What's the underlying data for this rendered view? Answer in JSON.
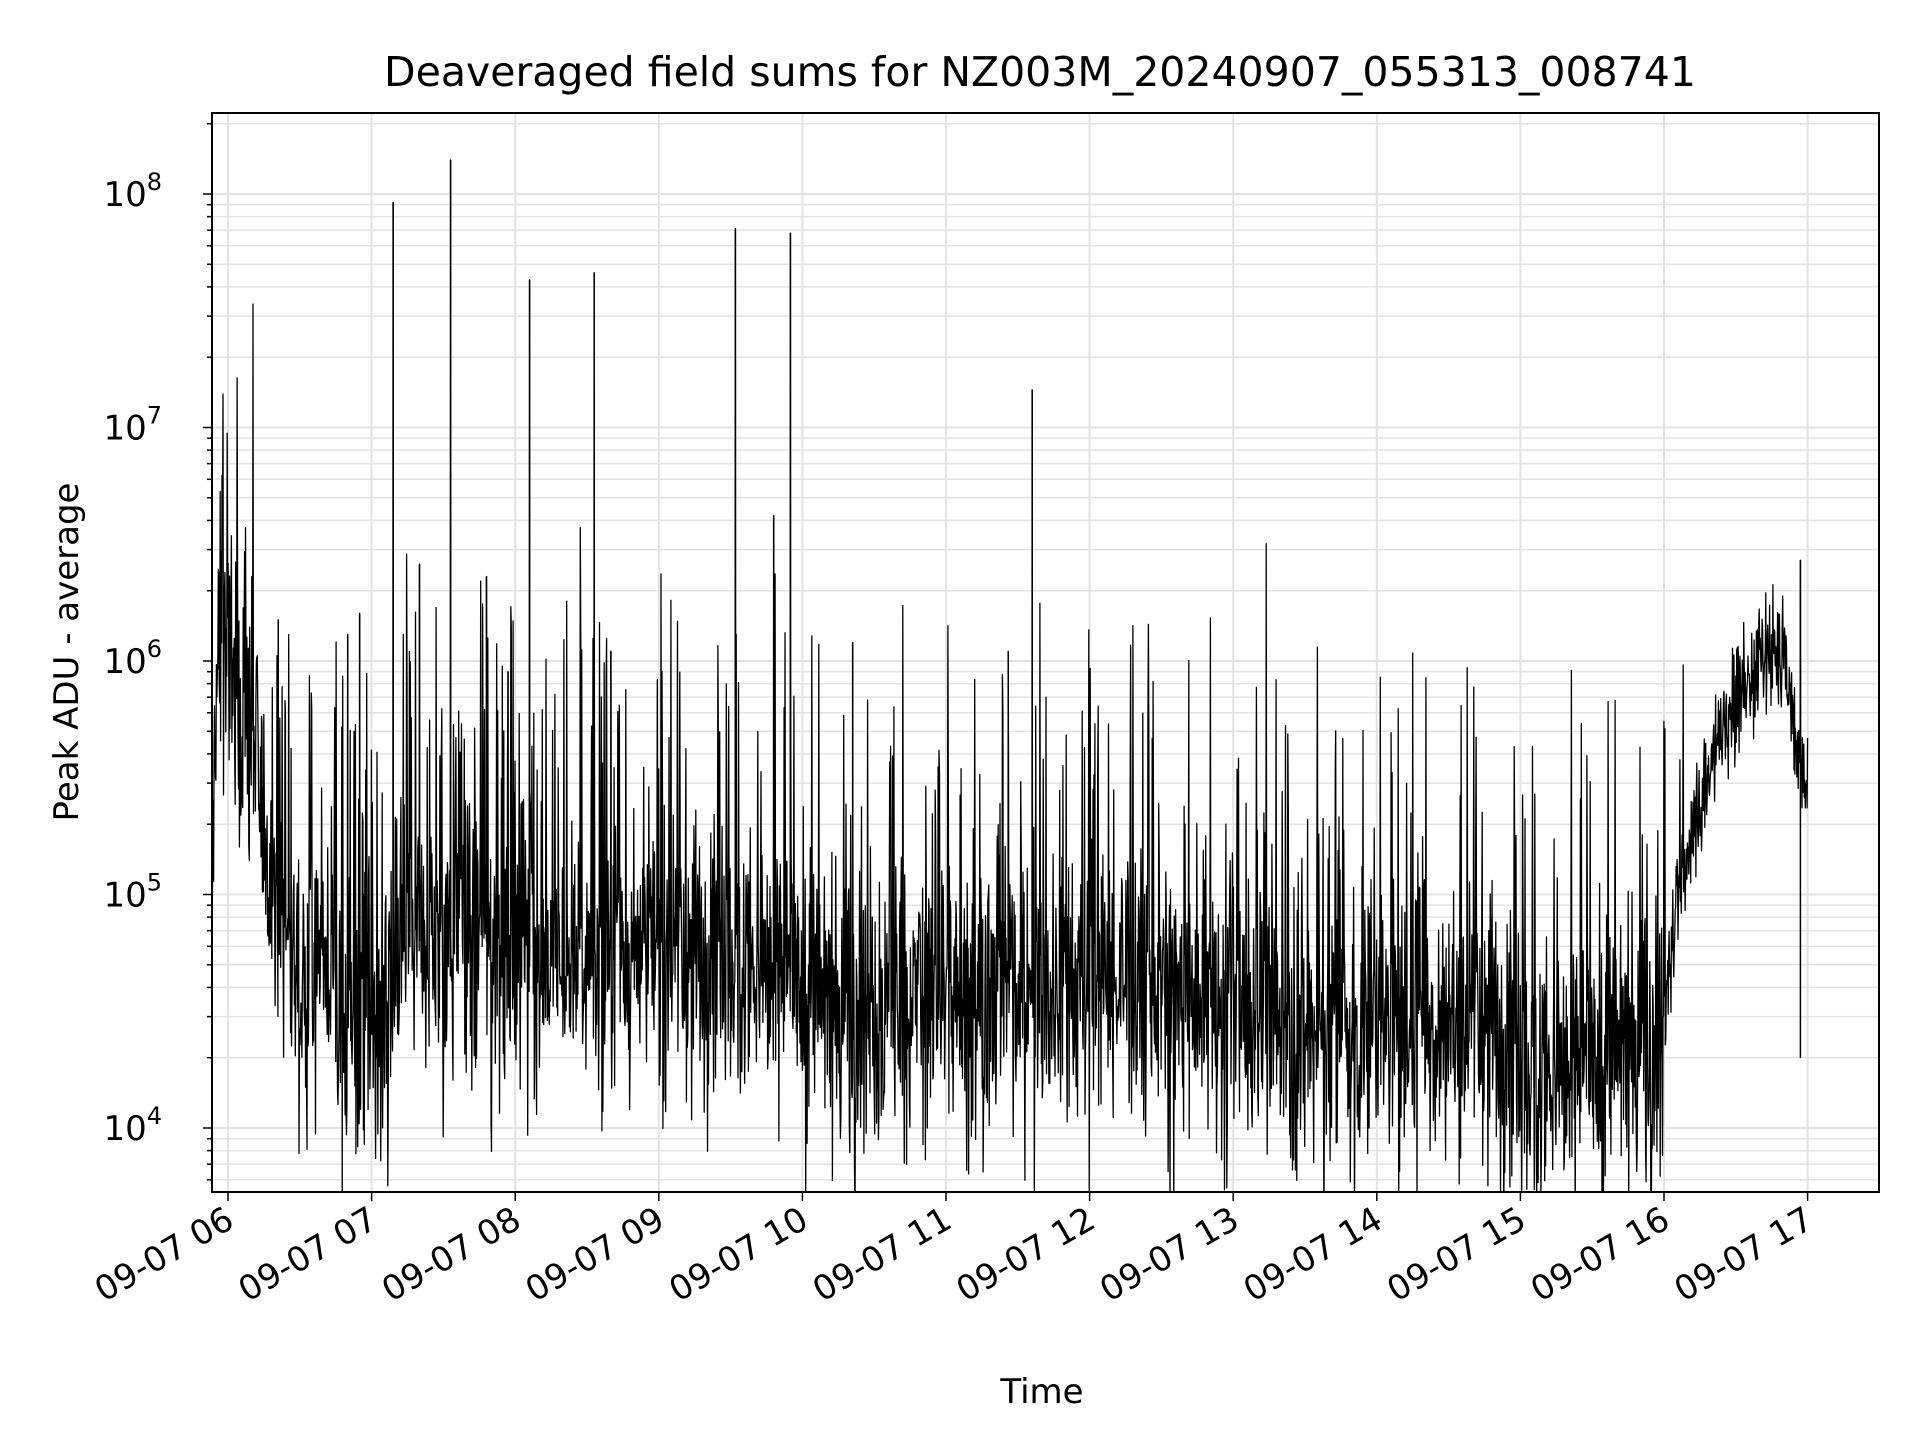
{
  "chart_data": {
    "type": "line",
    "title": "Deaveraged field sums for NZ003M_20240907_055313_008741",
    "xlabel": "Time",
    "ylabel": "Peak ADU - average",
    "yscale": "log",
    "ylim": [
      5000,
      220000000
    ],
    "xlim": [
      "2024-09-07 05:53",
      "2024-09-07 17:00"
    ],
    "grid": true,
    "line_color": "#000000",
    "x_ticks": [
      "09-07 06",
      "09-07 07",
      "09-07 08",
      "09-07 09",
      "09-07 10",
      "09-07 11",
      "09-07 12",
      "09-07 13",
      "09-07 14",
      "09-07 15",
      "09-07 16",
      "09-07 17"
    ],
    "y_ticks": [
      {
        "value": 10000,
        "base": "10",
        "exp": "4"
      },
      {
        "value": 100000,
        "base": "10",
        "exp": "5"
      },
      {
        "value": 1000000,
        "base": "10",
        "exp": "6"
      },
      {
        "value": 10000000,
        "base": "10",
        "exp": "7"
      },
      {
        "value": 100000000,
        "base": "10",
        "exp": "8"
      }
    ],
    "series": [
      {
        "time": [
          "2024-09-07 05:53",
          "2024-09-07 05:55",
          "2024-09-07 05:58",
          "2024-09-07 06:00",
          "2024-09-07 06:05",
          "2024-09-07 06:10",
          "2024-09-07 06:15",
          "2024-09-07 06:20",
          "2024-09-07 06:25",
          "2024-09-07 06:30",
          "2024-09-07 06:40",
          "2024-09-07 06:50",
          "2024-09-07 07:00",
          "2024-09-07 07:15",
          "2024-09-07 07:30",
          "2024-09-07 07:45",
          "2024-09-07 08:00",
          "2024-09-07 08:15",
          "2024-09-07 08:30",
          "2024-09-07 08:45",
          "2024-09-07 09:00",
          "2024-09-07 09:15",
          "2024-09-07 09:30",
          "2024-09-07 09:45",
          "2024-09-07 10:00",
          "2024-09-07 10:15",
          "2024-09-07 10:30",
          "2024-09-07 10:45",
          "2024-09-07 11:00",
          "2024-09-07 11:15",
          "2024-09-07 11:30",
          "2024-09-07 11:45",
          "2024-09-07 12:00",
          "2024-09-07 12:15",
          "2024-09-07 12:30",
          "2024-09-07 12:45",
          "2024-09-07 13:00",
          "2024-09-07 13:15",
          "2024-09-07 13:30",
          "2024-09-07 13:45",
          "2024-09-07 14:00",
          "2024-09-07 14:15",
          "2024-09-07 14:30",
          "2024-09-07 14:45",
          "2024-09-07 15:00",
          "2024-09-07 15:15",
          "2024-09-07 15:30",
          "2024-09-07 15:45",
          "2024-09-07 16:00",
          "2024-09-07 16:10",
          "2024-09-07 16:20",
          "2024-09-07 16:30",
          "2024-09-07 16:40",
          "2024-09-07 16:50",
          "2024-09-07 17:00"
        ],
        "values": [
          50000,
          900000,
          1500000,
          1000000,
          700000,
          500000,
          200000,
          100000,
          60000,
          50000,
          60000,
          30000,
          25000,
          60000,
          70000,
          65000,
          55000,
          50000,
          55000,
          60000,
          60000,
          55000,
          60000,
          50000,
          45000,
          35000,
          30000,
          35000,
          40000,
          40000,
          45000,
          40000,
          40000,
          45000,
          40000,
          35000,
          30000,
          30000,
          25000,
          25000,
          30000,
          30000,
          30000,
          30000,
          20000,
          18000,
          20000,
          25000,
          25000,
          35000,
          30000,
          25000,
          20000,
          20000,
          20000
        ]
      }
    ],
    "spikes": [
      {
        "time": "2024-09-07 06:10",
        "value": 2300000
      },
      {
        "time": "2024-09-07 06:21",
        "value": 1500000
      },
      {
        "time": "2024-09-07 06:50",
        "value": 1300000
      },
      {
        "time": "2024-09-07 06:55",
        "value": 1600000
      },
      {
        "time": "2024-09-07 07:09",
        "value": 92000000
      },
      {
        "time": "2024-09-07 07:20",
        "value": 2600000
      },
      {
        "time": "2024-09-07 07:33",
        "value": 140000000
      },
      {
        "time": "2024-09-07 07:48",
        "value": 2300000
      },
      {
        "time": "2024-09-07 07:57",
        "value": 900000
      },
      {
        "time": "2024-09-07 08:06",
        "value": 43000000
      },
      {
        "time": "2024-09-07 08:33",
        "value": 46000000
      },
      {
        "time": "2024-09-07 08:40",
        "value": 1100000
      },
      {
        "time": "2024-09-07 09:32",
        "value": 71000000
      },
      {
        "time": "2024-09-07 09:48",
        "value": 4200000
      },
      {
        "time": "2024-09-07 09:55",
        "value": 68000000
      },
      {
        "time": "2024-09-07 10:21",
        "value": 1200000
      },
      {
        "time": "2024-09-07 11:26",
        "value": 1100000
      },
      {
        "time": "2024-09-07 11:36",
        "value": 14500000
      },
      {
        "time": "2024-09-07 16:57",
        "value": 2700000
      }
    ],
    "end_hump": {
      "time": [
        "2024-09-07 16:00",
        "2024-09-07 16:05",
        "2024-09-07 16:10",
        "2024-09-07 16:15",
        "2024-09-07 16:20",
        "2024-09-07 16:30",
        "2024-09-07 16:40",
        "2024-09-07 16:50",
        "2024-09-07 17:00"
      ],
      "values": [
        30000,
        80000,
        150000,
        250000,
        400000,
        700000,
        1000000,
        1100000,
        250000
      ]
    }
  }
}
